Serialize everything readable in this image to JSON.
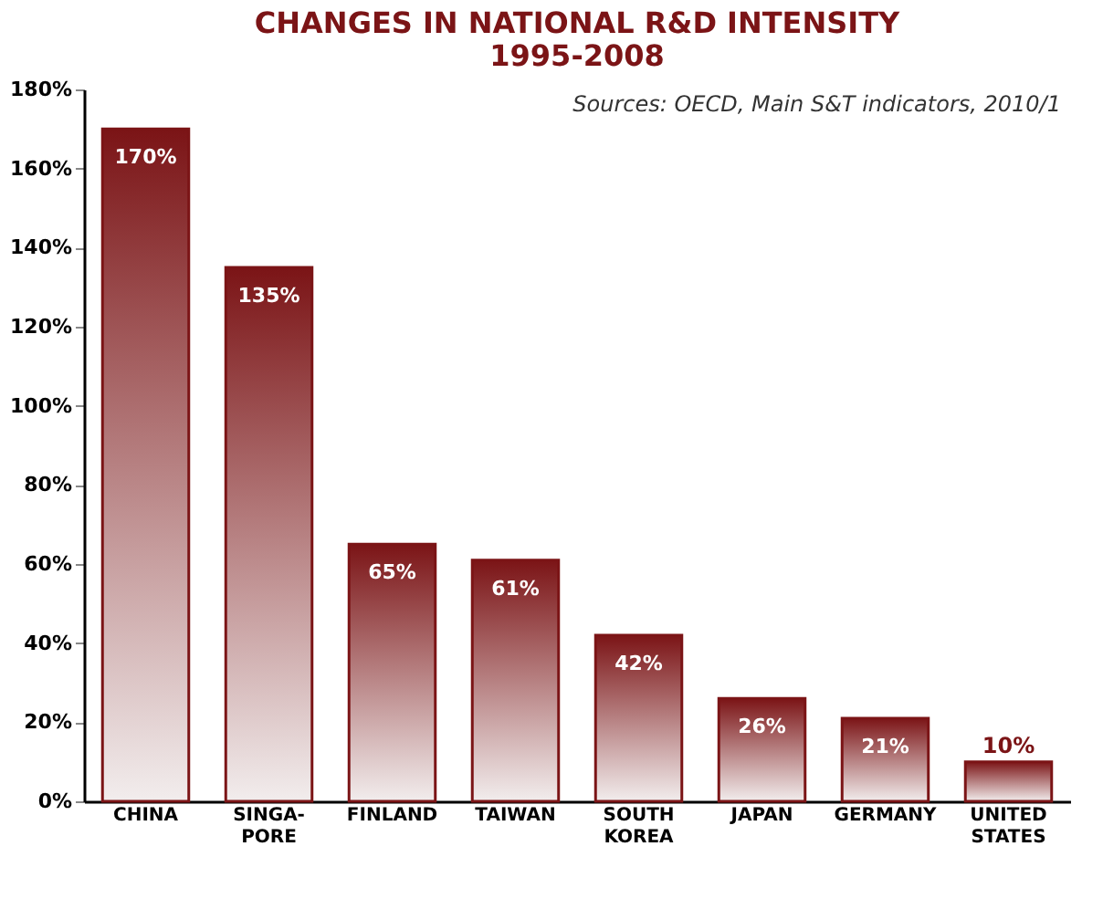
{
  "chart_data": {
    "type": "bar",
    "title": [
      "CHANGES IN NATIONAL R&D INTENSITY",
      "1995-2008"
    ],
    "categories": [
      "CHINA",
      "SINGA-\nPORE",
      "FINLAND",
      "TAIWAN",
      "SOUTH\nKOREA",
      "JAPAN",
      "GERMANY",
      "UNITED\nSTATES"
    ],
    "values": [
      170,
      135,
      65,
      61,
      42,
      26,
      21,
      10
    ],
    "value_labels": [
      "170%",
      "135%",
      "65%",
      "61%",
      "42%",
      "26%",
      "21%",
      "10%"
    ],
    "color": "#7b1416",
    "ylim": [
      0,
      180
    ],
    "yticks": [
      {
        "value": 0,
        "label": "0%"
      },
      {
        "value": 20,
        "label": "20%"
      },
      {
        "value": 40,
        "label": "40%"
      },
      {
        "value": 60,
        "label": "60%"
      },
      {
        "value": 80,
        "label": "80%"
      },
      {
        "value": 100,
        "label": "100%"
      },
      {
        "value": 120,
        "label": "120%"
      },
      {
        "value": 140,
        "label": "140%"
      },
      {
        "value": 160,
        "label": "160%"
      },
      {
        "value": 180,
        "label": "180%"
      }
    ],
    "annotations": [
      "Sources: OECD, Main S&T indicators, 2010/1"
    ],
    "grid": false
  }
}
